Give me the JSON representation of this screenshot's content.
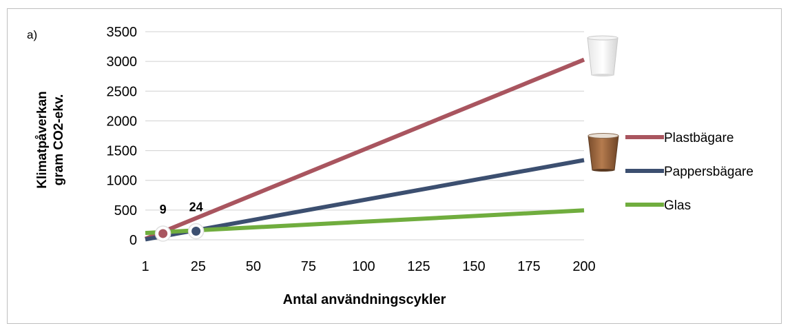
{
  "chart_data": {
    "type": "line",
    "panel_label": "a)",
    "title": "",
    "xlabel": "Antal användningscykler",
    "ylabel_line1": "Klimatpåverkan",
    "ylabel_line2": "gram CO2-ekv.",
    "x_ticks": [
      1,
      25,
      50,
      75,
      100,
      125,
      150,
      175,
      200
    ],
    "y_ticks": [
      0,
      500,
      1000,
      1500,
      2000,
      2500,
      3000,
      3500
    ],
    "xlim": [
      1,
      200
    ],
    "ylim": [
      0,
      3500
    ],
    "grid": "horizontal",
    "legend_position": "right",
    "series": [
      {
        "name": "Plastbägare",
        "color": "#a9555f",
        "x": [
          1,
          200
        ],
        "y": [
          15,
          3030
        ]
      },
      {
        "name": "Pappersbägare",
        "color": "#3c4f70",
        "x": [
          1,
          200
        ],
        "y": [
          7,
          1340
        ]
      },
      {
        "name": "Glas",
        "color": "#70ad3e",
        "x": [
          1,
          200
        ],
        "y": [
          115,
          495
        ]
      }
    ],
    "annotations": [
      {
        "label": "9",
        "x": 9,
        "y": 105,
        "color": "#a9555f"
      },
      {
        "label": "24",
        "x": 24,
        "y": 145,
        "color": "#3c4f70"
      }
    ]
  }
}
